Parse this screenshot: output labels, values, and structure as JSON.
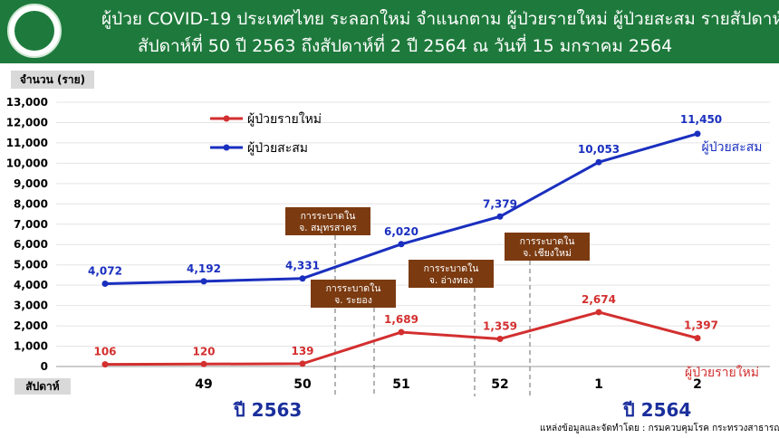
{
  "header": {
    "line1": "ผู้ป่วย COVID-19 ประเทศไทย ระลอกใหม่ จำแนกตาม ผู้ป่วยรายใหม่ ผู้ป่วยสะสม รายสัปดาห์",
    "line2": "สัปดาห์ที่ 50 ปี 2563 ถึงสัปดาห์ที่ 2 ปี 2564 ณ วันที่ 15 มกราคม 2564"
  },
  "colors": {
    "header_bg": "#1e7a3c",
    "new_cases": "#d32f2f",
    "cumulative": "#1a2fbf",
    "annotation": "#7b3a10"
  },
  "chart_data": {
    "type": "line",
    "ylabel": "จำนวน (ราย)",
    "xlabel": "สัปดาห์",
    "categories": [
      "",
      "49",
      "50",
      "51",
      "52",
      "1",
      "2"
    ],
    "ylim": [
      0,
      13000
    ],
    "yticks": [
      "0",
      "1,000",
      "2,000",
      "3,000",
      "4,000",
      "5,000",
      "6,000",
      "7,000",
      "8,000",
      "9,000",
      "10,000",
      "11,000",
      "12,000",
      "13,000"
    ],
    "grid": true,
    "legend_placement": "top-left",
    "series": [
      {
        "name": "ผู้ป่วยรายใหม่",
        "values": [
          106,
          120,
          139,
          1689,
          1359,
          2674,
          1397
        ],
        "labels": [
          "106",
          "120",
          "139",
          "1,689",
          "1,359",
          "2,674",
          "1,397"
        ],
        "end_label": "ผู้ป่วยรายใหม่"
      },
      {
        "name": "ผู้ป่วยสะสม",
        "values": [
          4072,
          4192,
          4331,
          6020,
          7379,
          10053,
          11450
        ],
        "labels": [
          "4,072",
          "4,192",
          "4,331",
          "6,020",
          "7,379",
          "10,053",
          "11,450"
        ],
        "end_label": "ผู้ป่วยสะสม"
      }
    ],
    "annotations": [
      {
        "line1": "การระบาดใน",
        "line2": "จ. สมุทรสาคร"
      },
      {
        "line1": "การระบาดใน",
        "line2": "จ. ระยอง"
      },
      {
        "line1": "การระบาดใน",
        "line2": "จ. อ่างทอง"
      },
      {
        "line1": "การระบาดใน",
        "line2": "จ. เชียงใหม่"
      }
    ],
    "years": [
      "ปี 2563",
      "ปี 2564"
    ]
  },
  "source": "แหล่งข้อมูลและจัดทำโดย : กรมควบคุมโรค กระทรวงสาธารณสุข"
}
